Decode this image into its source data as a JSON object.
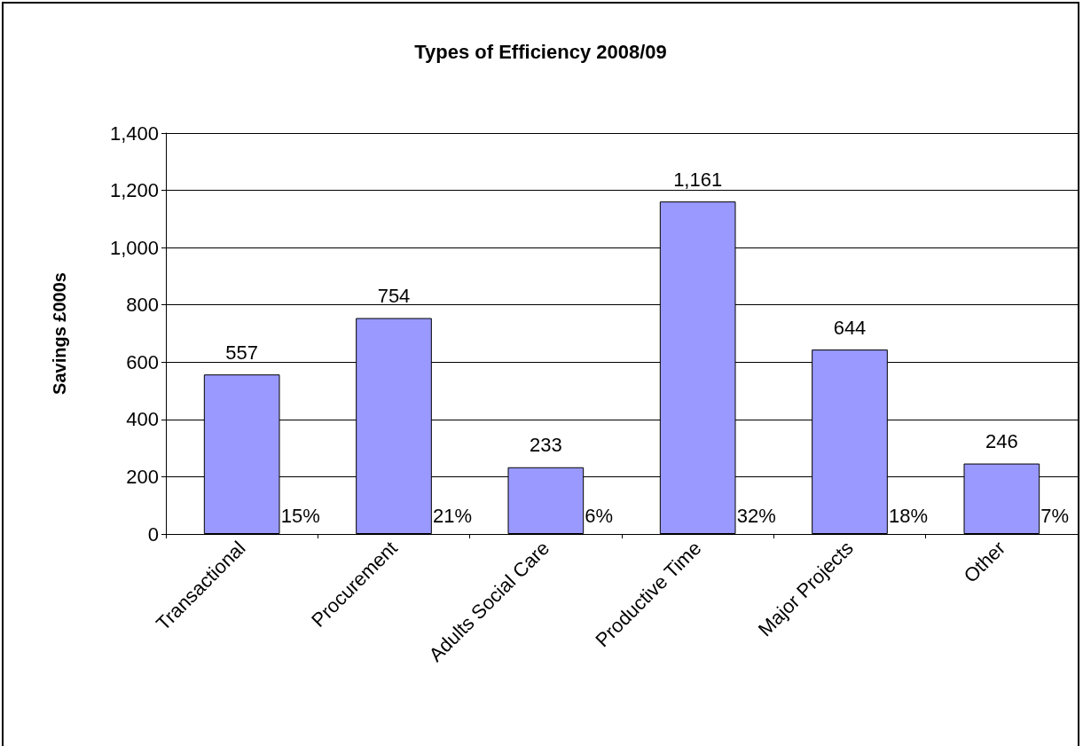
{
  "chart_data": {
    "type": "bar",
    "title": "Types of Efficiency 2008/09",
    "ylabel": "Savings £000s",
    "categories": [
      "Transactional",
      "Procurement",
      "Adults Social Care",
      "Productive Time",
      "Major Projects",
      "Other"
    ],
    "values": [
      557,
      754,
      233,
      1161,
      644,
      246
    ],
    "color": "#9999ff",
    "ylim": [
      0,
      1400
    ],
    "yticks": [
      {
        "value": 0,
        "label": "0"
      },
      {
        "value": 200,
        "label": "200"
      },
      {
        "value": 400,
        "label": "400"
      },
      {
        "value": 600,
        "label": "600"
      },
      {
        "value": 800,
        "label": "800"
      },
      {
        "value": 1000,
        "label": "1,000"
      },
      {
        "value": 1200,
        "label": "1,200"
      },
      {
        "value": 1400,
        "label": "1,400"
      }
    ],
    "value_labels": [
      "557",
      "754",
      "233",
      "1,161",
      "644",
      "246"
    ],
    "annotations": [
      {
        "text": "15%",
        "x": "Transactional",
        "y": 0
      },
      {
        "text": "21%",
        "x": "Procurement",
        "y": 0
      },
      {
        "text": "6%",
        "x": "Adults Social Care",
        "y": 0
      },
      {
        "text": "32%",
        "x": "Productive Time",
        "y": 0
      },
      {
        "text": "18%",
        "x": "Major Projects",
        "y": 0
      },
      {
        "text": "7%",
        "x": "Other",
        "y": 0
      }
    ],
    "grid": "y"
  }
}
